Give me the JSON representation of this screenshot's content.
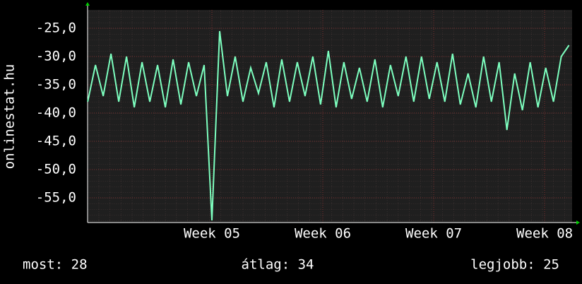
{
  "chart_data": {
    "type": "line",
    "y_label": "onlinestat.hu",
    "x": [
      3.88,
      3.95,
      4.02,
      4.09,
      4.16,
      4.23,
      4.3,
      4.37,
      4.44,
      4.51,
      4.58,
      4.65,
      4.72,
      4.79,
      4.86,
      4.93,
      5.0,
      5.07,
      5.14,
      5.21,
      5.28,
      5.35,
      5.42,
      5.49,
      5.56,
      5.63,
      5.7,
      5.77,
      5.84,
      5.91,
      5.98,
      6.05,
      6.12,
      6.19,
      6.26,
      6.33,
      6.4,
      6.47,
      6.54,
      6.61,
      6.68,
      6.75,
      6.82,
      6.89,
      6.96,
      7.03,
      7.1,
      7.17,
      7.24,
      7.31,
      7.38,
      7.45,
      7.52,
      7.59,
      7.66,
      7.73,
      7.8,
      7.87,
      7.94,
      8.01,
      8.08,
      8.15,
      8.22
    ],
    "series": [
      {
        "color": "#7dffbf",
        "values": [
          -38,
          -31.5,
          -37,
          -29.5,
          -38,
          -30,
          -39,
          -31,
          -38,
          -31.5,
          -39,
          -30.5,
          -38.5,
          -31,
          -37,
          -31.5,
          -59,
          -25.5,
          -37,
          -30,
          -38,
          -32,
          -36.5,
          -31,
          -39,
          -30.5,
          -38,
          -31,
          -37,
          -30,
          -38.5,
          -29,
          -39,
          -31,
          -37.5,
          -32,
          -38,
          -30.5,
          -39,
          -31.5,
          -37,
          -30,
          -38,
          -30,
          -37.5,
          -31,
          -38,
          -29.5,
          -38.5,
          -33,
          -39,
          -30,
          -38,
          -31,
          -43,
          -33,
          -39.5,
          -31,
          -39,
          -32,
          -38,
          -30,
          -28
        ]
      }
    ],
    "xlim": [
      3.879,
      8.248
    ],
    "ylim": [
      -59.375,
      -21.75
    ],
    "xticks": [
      {
        "value": 5,
        "label": "Week 05"
      },
      {
        "value": 6,
        "label": "Week 06"
      },
      {
        "value": 7,
        "label": "Week 07"
      },
      {
        "value": 8,
        "label": "Week 08"
      }
    ],
    "yticks": [
      {
        "value": -55,
        "label": "-55,0"
      },
      {
        "value": -50,
        "label": "-50,0"
      },
      {
        "value": -45,
        "label": "-45,0"
      },
      {
        "value": -40,
        "label": "-40,0"
      },
      {
        "value": -35,
        "label": "-35,0"
      },
      {
        "value": -30,
        "label": "-30,0"
      },
      {
        "value": -25,
        "label": "-25,0"
      }
    ],
    "grid": true,
    "stats": [
      "most: 28",
      "átlag: 34",
      "legjobb: 25"
    ]
  }
}
